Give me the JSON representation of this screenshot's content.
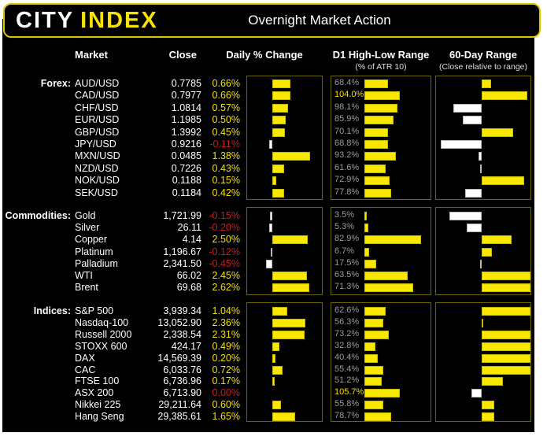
{
  "header": {
    "logo_city": "CITY",
    "logo_index": "INDEX",
    "title": "Overnight Market Action"
  },
  "column_headers": {
    "market": "Market",
    "close": "Close",
    "daily_change": "Daily % Change",
    "d1_range": "D1 High-Low Range",
    "d1_range_sub": "(% of ATR 10)",
    "range_60": "60-Day Range",
    "range_60_sub": "(Close relative to range)"
  },
  "colors": {
    "page_background": "#ffffff",
    "background": "#000000",
    "accent_yellow": "#f6e400",
    "bar_yellow": "#f9e900",
    "bar_white": "#ffffff",
    "negative_red": "#bf2026",
    "muted_gray": "#9b9b9b",
    "panel_border": "#6c6600",
    "header_border": "#d6c500"
  },
  "chart_data": {
    "type": "table",
    "title": "Overnight Market Action",
    "notes": "Each section has 3 embedded bar charts: Daily % Change (yellow=positive, white=negative), D1 High-Low Range as % of ATR 10 (values >=100% highlighted yellow), and 60-Day Range close position relative to range midpoint (yellow=above mid extends right, white=below mid extends left; range60_frac is -1..1 of half-range).",
    "sections": [
      {
        "label": "Forex:",
        "rows": [
          {
            "market": "AUD/USD",
            "close": "0.7785",
            "daily_pct": 0.66,
            "daily_label": "0.66%",
            "d1_pct": 68.4,
            "d1_label": "68.4%",
            "d1_highlight": false,
            "range60_frac": 0.19
          },
          {
            "market": "CAD/USD",
            "close": "0.7977",
            "daily_pct": 0.66,
            "daily_label": "0.66%",
            "d1_pct": 104.0,
            "d1_label": "104.0%",
            "d1_highlight": true,
            "range60_frac": 0.92
          },
          {
            "market": "CHF/USD",
            "close": "1.0814",
            "daily_pct": 0.57,
            "daily_label": "0.57%",
            "d1_pct": 98.1,
            "d1_label": "98.1%",
            "d1_highlight": false,
            "range60_frac": -0.66
          },
          {
            "market": "EUR/USD",
            "close": "1.1985",
            "daily_pct": 0.5,
            "daily_label": "0.50%",
            "d1_pct": 85.9,
            "d1_label": "85.9%",
            "d1_highlight": false,
            "range60_frac": -0.45
          },
          {
            "market": "GBP/USD",
            "close": "1.3992",
            "daily_pct": 0.45,
            "daily_label": "0.45%",
            "d1_pct": 70.1,
            "d1_label": "70.1%",
            "d1_highlight": false,
            "range60_frac": 0.63
          },
          {
            "market": "JPY/USD",
            "close": "0.9216",
            "daily_pct": -0.11,
            "daily_label": "-0.11%",
            "d1_pct": 68.8,
            "d1_label": "68.8%",
            "d1_highlight": false,
            "range60_frac": -0.97
          },
          {
            "market": "MXN/USD",
            "close": "0.0485",
            "daily_pct": 1.38,
            "daily_label": "1.38%",
            "d1_pct": 93.2,
            "d1_label": "93.2%",
            "d1_highlight": false,
            "range60_frac": -0.07
          },
          {
            "market": "NZD/USD",
            "close": "0.7226",
            "daily_pct": 0.43,
            "daily_label": "0.43%",
            "d1_pct": 61.6,
            "d1_label": "61.6%",
            "d1_highlight": false,
            "range60_frac": -0.04
          },
          {
            "market": "NOK/USD",
            "close": "0.1188",
            "daily_pct": 0.15,
            "daily_label": "0.15%",
            "d1_pct": 72.9,
            "d1_label": "72.9%",
            "d1_highlight": false,
            "range60_frac": 0.86
          },
          {
            "market": "SEK/USD",
            "close": "0.1184",
            "daily_pct": 0.42,
            "daily_label": "0.42%",
            "d1_pct": 77.8,
            "d1_label": "77.8%",
            "d1_highlight": false,
            "range60_frac": -0.39
          }
        ]
      },
      {
        "label": "Commodities:",
        "rows": [
          {
            "market": "Gold",
            "close": "1,721.99",
            "daily_pct": -0.15,
            "daily_label": "-0.15%",
            "d1_pct": 3.5,
            "d1_label": "3.5%",
            "d1_highlight": false,
            "range60_frac": -0.76
          },
          {
            "market": "Silver",
            "close": "26.11",
            "daily_pct": -0.2,
            "daily_label": "-0.20%",
            "d1_pct": 5.3,
            "d1_label": "5.3%",
            "d1_highlight": false,
            "range60_frac": -0.36
          },
          {
            "market": "Copper",
            "close": "4.14",
            "daily_pct": 2.5,
            "daily_label": "2.50%",
            "d1_pct": 82.9,
            "d1_label": "82.9%",
            "d1_highlight": false,
            "range60_frac": 0.6
          },
          {
            "market": "Platinum",
            "close": "1,196.67",
            "daily_pct": -0.12,
            "daily_label": "-0.12%",
            "d1_pct": 6.7,
            "d1_label": "6.7%",
            "d1_highlight": false,
            "range60_frac": 0.21
          },
          {
            "market": "Palladium",
            "close": "2,341.50",
            "daily_pct": -0.45,
            "daily_label": "-0.45%",
            "d1_pct": 17.5,
            "d1_label": "17.5%",
            "d1_highlight": false,
            "range60_frac": -0.03
          },
          {
            "market": "WTI",
            "close": "66.02",
            "daily_pct": 2.45,
            "daily_label": "2.45%",
            "d1_pct": 63.5,
            "d1_label": "63.5%",
            "d1_highlight": false,
            "range60_frac": 0.98
          },
          {
            "market": "Brent",
            "close": "69.68",
            "daily_pct": 2.62,
            "daily_label": "2.62%",
            "d1_pct": 71.3,
            "d1_label": "71.3%",
            "d1_highlight": false,
            "range60_frac": 0.98
          }
        ]
      },
      {
        "label": "Indices:",
        "rows": [
          {
            "market": "S&P 500",
            "close": "3,939.34",
            "daily_pct": 1.04,
            "daily_label": "1.04%",
            "d1_pct": 62.6,
            "d1_label": "62.6%",
            "d1_highlight": false,
            "range60_frac": 0.98
          },
          {
            "market": "Nasdaq-100",
            "close": "13,052.90",
            "daily_pct": 2.36,
            "daily_label": "2.36%",
            "d1_pct": 56.3,
            "d1_label": "56.3%",
            "d1_highlight": false,
            "range60_frac": 0.03
          },
          {
            "market": "Russell 2000",
            "close": "2,338.54",
            "daily_pct": 2.31,
            "daily_label": "2.31%",
            "d1_pct": 73.2,
            "d1_label": "73.2%",
            "d1_highlight": false,
            "range60_frac": 0.98
          },
          {
            "market": "STOXX 600",
            "close": "424.17",
            "daily_pct": 0.49,
            "daily_label": "0.49%",
            "d1_pct": 32.8,
            "d1_label": "32.8%",
            "d1_highlight": false,
            "range60_frac": 0.98
          },
          {
            "market": "DAX",
            "close": "14,569.39",
            "daily_pct": 0.2,
            "daily_label": "0.20%",
            "d1_pct": 40.4,
            "d1_label": "40.4%",
            "d1_highlight": false,
            "range60_frac": 0.98
          },
          {
            "market": "CAC",
            "close": "6,033.76",
            "daily_pct": 0.72,
            "daily_label": "0.72%",
            "d1_pct": 55.4,
            "d1_label": "55.4%",
            "d1_highlight": false,
            "range60_frac": 0.98
          },
          {
            "market": "FTSE 100",
            "close": "6,736.96",
            "daily_pct": 0.17,
            "daily_label": "0.17%",
            "d1_pct": 51.2,
            "d1_label": "51.2%",
            "d1_highlight": false,
            "range60_frac": 0.43
          },
          {
            "market": "ASX 200",
            "close": "6,713.90",
            "daily_pct": 0.0,
            "daily_label": "0.00%",
            "d1_pct": 105.7,
            "d1_label": "105.7%",
            "d1_highlight": true,
            "range60_frac": -0.25
          },
          {
            "market": "Nikkei 225",
            "close": "29,211.64",
            "daily_pct": 0.6,
            "daily_label": "0.60%",
            "d1_pct": 55.8,
            "d1_label": "55.8%",
            "d1_highlight": false,
            "range60_frac": 0.26
          },
          {
            "market": "Hang Seng",
            "close": "29,385.61",
            "daily_pct": 1.65,
            "daily_label": "1.65%",
            "d1_pct": 78.7,
            "d1_label": "78.7%",
            "d1_highlight": false,
            "range60_frac": 0.26
          }
        ]
      }
    ]
  }
}
